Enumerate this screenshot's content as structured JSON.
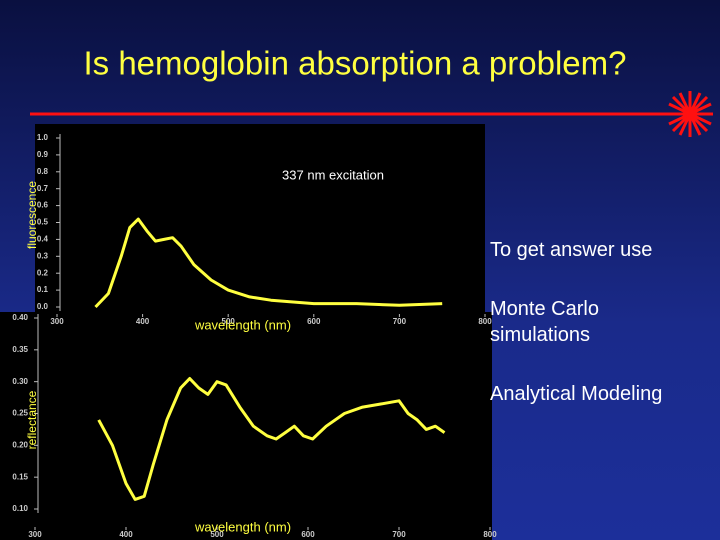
{
  "slide": {
    "title": "Is hemoglobin absorption a problem?",
    "bullets": [
      "To get answer use",
      "Monte Carlo simulations",
      "Analytical Modeling"
    ]
  },
  "chart_data": [
    {
      "type": "line",
      "ylabel": "fluorescence",
      "xlabel": "wavelength (nm)",
      "annotation": "337 nm excitation",
      "xlim": [
        300,
        800
      ],
      "xticks": [
        300,
        400,
        500,
        600,
        700,
        800
      ],
      "ylim": [
        0,
        1
      ],
      "yticks": [
        {
          "value": 0,
          "label": "0.0"
        },
        0.1,
        0.2,
        0.3,
        0.4,
        0.5,
        0.6,
        0.7,
        0.8,
        0.9,
        {
          "value": 1,
          "label": "1.0"
        }
      ],
      "x": [
        345,
        360,
        375,
        385,
        395,
        405,
        415,
        425,
        435,
        445,
        460,
        480,
        500,
        525,
        550,
        600,
        650,
        700,
        750
      ],
      "series": [
        {
          "color": "#ffff40",
          "values": [
            0.0,
            0.08,
            0.3,
            0.47,
            0.52,
            0.45,
            0.39,
            0.4,
            0.41,
            0.36,
            0.25,
            0.16,
            0.1,
            0.06,
            0.04,
            0.02,
            0.02,
            0.01,
            0.02
          ]
        }
      ]
    },
    {
      "type": "line",
      "ylabel": "reflectance",
      "xlabel": "wavelength (nm)",
      "xlim": [
        300,
        800
      ],
      "xticks": [
        300,
        400,
        500,
        600,
        700,
        800
      ],
      "ylim": [
        0.1,
        0.4
      ],
      "yticks": [
        {
          "value": 0.1,
          "label": "0.10"
        },
        0.15,
        {
          "value": 0.2,
          "label": "0.20"
        },
        0.25,
        {
          "value": 0.3,
          "label": "0.30"
        },
        0.35,
        {
          "value": 0.4,
          "label": "0.40"
        }
      ],
      "x": [
        370,
        385,
        400,
        410,
        420,
        430,
        445,
        460,
        470,
        480,
        490,
        500,
        510,
        525,
        540,
        555,
        565,
        575,
        585,
        595,
        605,
        620,
        640,
        660,
        680,
        700,
        710,
        720,
        730,
        740,
        750
      ],
      "series": [
        {
          "color": "#ffff40",
          "values": [
            0.24,
            0.2,
            0.14,
            0.115,
            0.12,
            0.17,
            0.24,
            0.29,
            0.305,
            0.29,
            0.28,
            0.3,
            0.295,
            0.26,
            0.23,
            0.215,
            0.21,
            0.22,
            0.23,
            0.215,
            0.21,
            0.23,
            0.25,
            0.26,
            0.265,
            0.27,
            0.25,
            0.24,
            0.225,
            0.23,
            0.22
          ]
        }
      ]
    }
  ]
}
